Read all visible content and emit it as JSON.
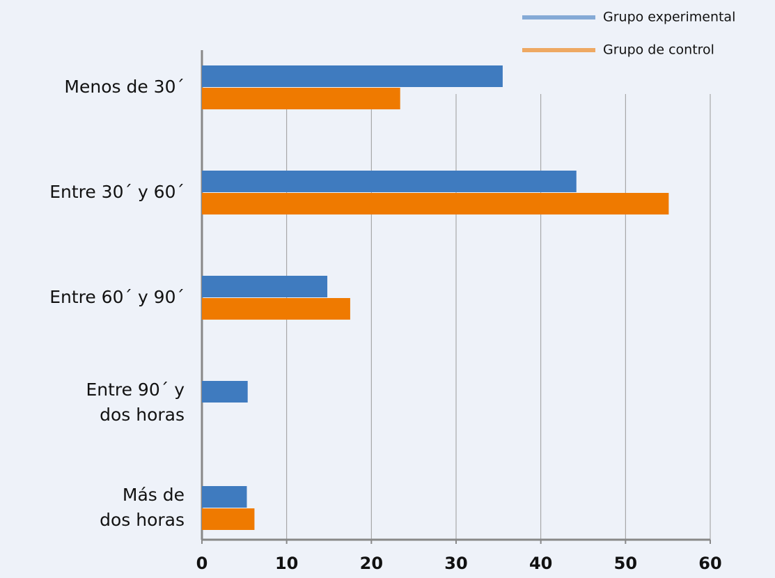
{
  "chart_data": {
    "type": "hbar",
    "categories": [
      "Menos de 30´",
      "Entre 30´ y 60´",
      "Entre 60´ y 90´",
      "Entre 90´ y\ndos horas",
      "Más de\ndos horas"
    ],
    "series": [
      {
        "name": "Grupo experimental",
        "color": "#3f7bbf",
        "values": [
          35.5,
          44.2,
          14.8,
          5.4,
          5.3
        ]
      },
      {
        "name": "Grupo de control",
        "color": "#ef7a00",
        "values": [
          23.4,
          55.1,
          17.5,
          0,
          6.2
        ]
      }
    ],
    "xlim": [
      0,
      60
    ],
    "xticks": [
      0,
      10,
      20,
      30,
      40,
      50,
      60
    ],
    "grid": true,
    "legend": "top-right"
  }
}
